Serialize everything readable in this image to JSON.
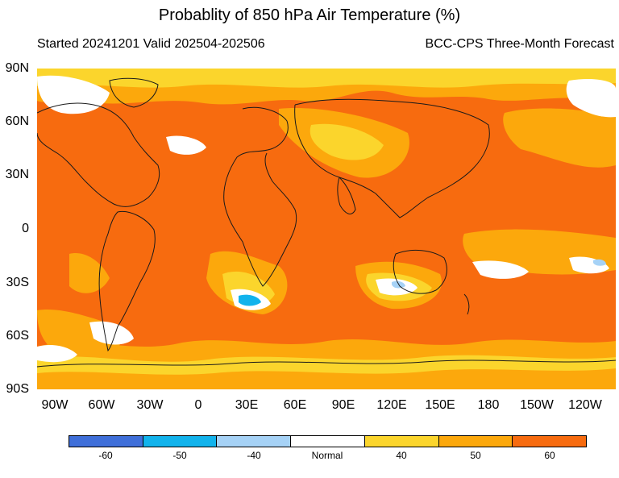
{
  "title": "Probablity of 850 hPa Air Temperature (%)",
  "subtitle_left": "Started 20241201  Valid 202504-202506",
  "subtitle_right": "BCC-CPS Three-Month Forecast",
  "lat_labels": [
    "90N",
    "60N",
    "30N",
    "0",
    "30S",
    "60S",
    "90S"
  ],
  "lon_labels": [
    "90W",
    "60W",
    "30W",
    "0",
    "30E",
    "60E",
    "90E",
    "120E",
    "150E",
    "180",
    "150W",
    "120W"
  ],
  "colorbar": {
    "colors": [
      "#3f6fd9",
      "#12b3ec",
      "#a6d2f6",
      "#ffffff",
      "#fbd52c",
      "#fca80c",
      "#f76b0f"
    ],
    "labels": [
      "-60",
      "-50",
      "-40",
      "Normal",
      "40",
      "50",
      "60"
    ]
  },
  "map_colors": {
    "background": "#f76b0f",
    "land_line": "#1a1a1a"
  }
}
